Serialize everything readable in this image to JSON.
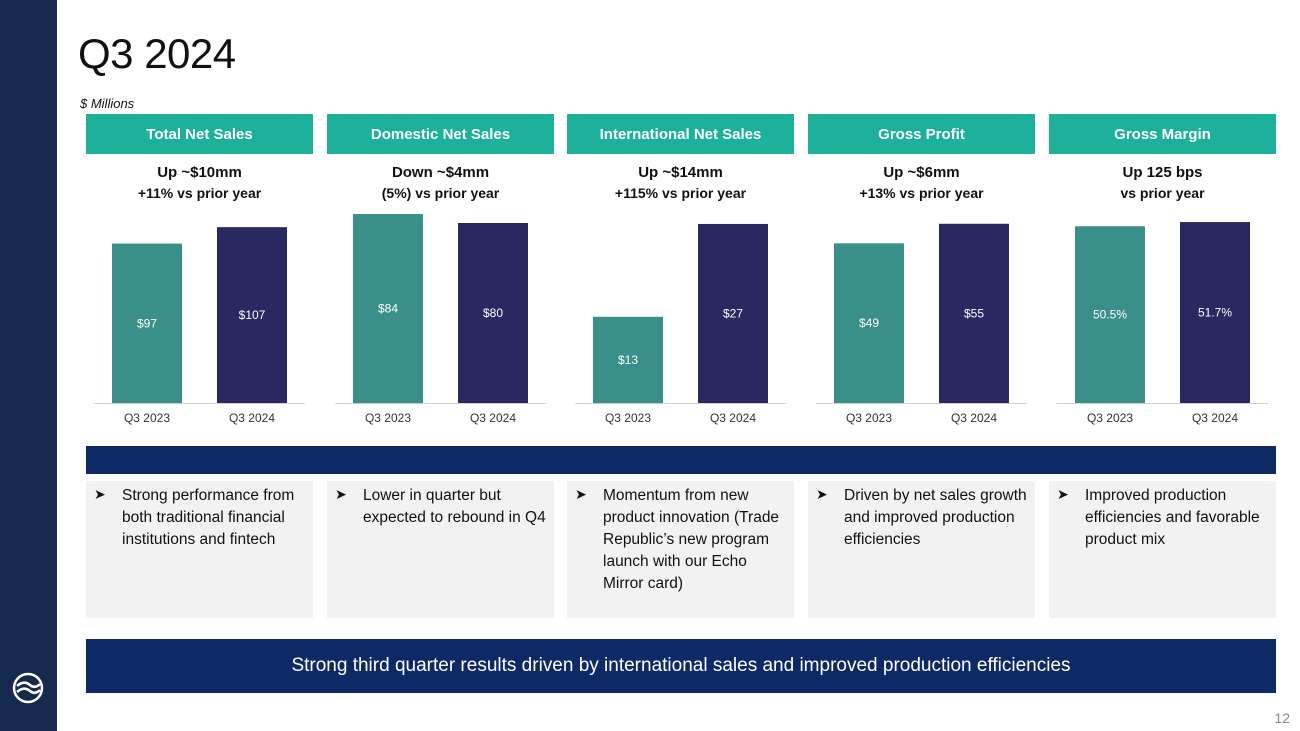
{
  "title": "Q3 2024",
  "subtitle": "$ Millions",
  "colors": {
    "header": "#1db09a",
    "bar_prior": "#3a8f8a",
    "bar_current": "#2a2860",
    "navy": "#0d2a66"
  },
  "panels": [
    {
      "header": "Total Net Sales",
      "delta_line1": "Up ~$10mm",
      "delta_line2": "+11% vs prior year",
      "bullet": "Strong performance from both traditional financial institutions and fintech"
    },
    {
      "header": "Domestic Net Sales",
      "delta_line1": "Down ~$4mm",
      "delta_line2": "(5%) vs prior year",
      "bullet": "Lower in quarter but expected to rebound in Q4"
    },
    {
      "header": "International Net Sales",
      "delta_line1": "Up ~$14mm",
      "delta_line2": "+115% vs prior year",
      "bullet": "Momentum from new product innovation (Trade Republic’s new program launch with our Echo Mirror card)"
    },
    {
      "header": "Gross Profit",
      "delta_line1": "Up ~$6mm",
      "delta_line2": "+13% vs prior year",
      "bullet": "Driven by net sales growth and improved production efficiencies"
    },
    {
      "header": "Gross Margin",
      "delta_line1": "Up 125 bps",
      "delta_line2": "vs prior year",
      "bullet": "Improved production efficiencies and favorable product mix"
    }
  ],
  "chart_data": [
    {
      "type": "bar",
      "title": "Total Net Sales",
      "categories": [
        "Q3 2023",
        "Q3 2024"
      ],
      "values": [
        97,
        107
      ],
      "labels": [
        "$97",
        "$107"
      ],
      "ylim": [
        0,
        115
      ]
    },
    {
      "type": "bar",
      "title": "Domestic Net Sales",
      "categories": [
        "Q3 2023",
        "Q3 2024"
      ],
      "values": [
        84,
        80
      ],
      "labels": [
        "$84",
        "$80"
      ],
      "ylim": [
        0,
        84
      ]
    },
    {
      "type": "bar",
      "title": "International Net Sales",
      "categories": [
        "Q3 2023",
        "Q3 2024"
      ],
      "values": [
        13,
        27
      ],
      "labels": [
        "$13",
        "$27"
      ],
      "ylim": [
        0,
        28.5
      ]
    },
    {
      "type": "bar",
      "title": "Gross Profit",
      "categories": [
        "Q3 2023",
        "Q3 2024"
      ],
      "values": [
        49,
        55
      ],
      "labels": [
        "$49",
        "$55"
      ],
      "ylim": [
        0,
        58
      ]
    },
    {
      "type": "bar",
      "title": "Gross Margin",
      "categories": [
        "Q3 2023",
        "Q3 2024"
      ],
      "values": [
        50.5,
        51.7
      ],
      "labels": [
        "50.5%",
        "51.7%"
      ],
      "ylim": [
        0,
        54
      ]
    }
  ],
  "conclusion": "Strong third quarter results driven by international sales and improved production efficiencies",
  "page_number": "12"
}
